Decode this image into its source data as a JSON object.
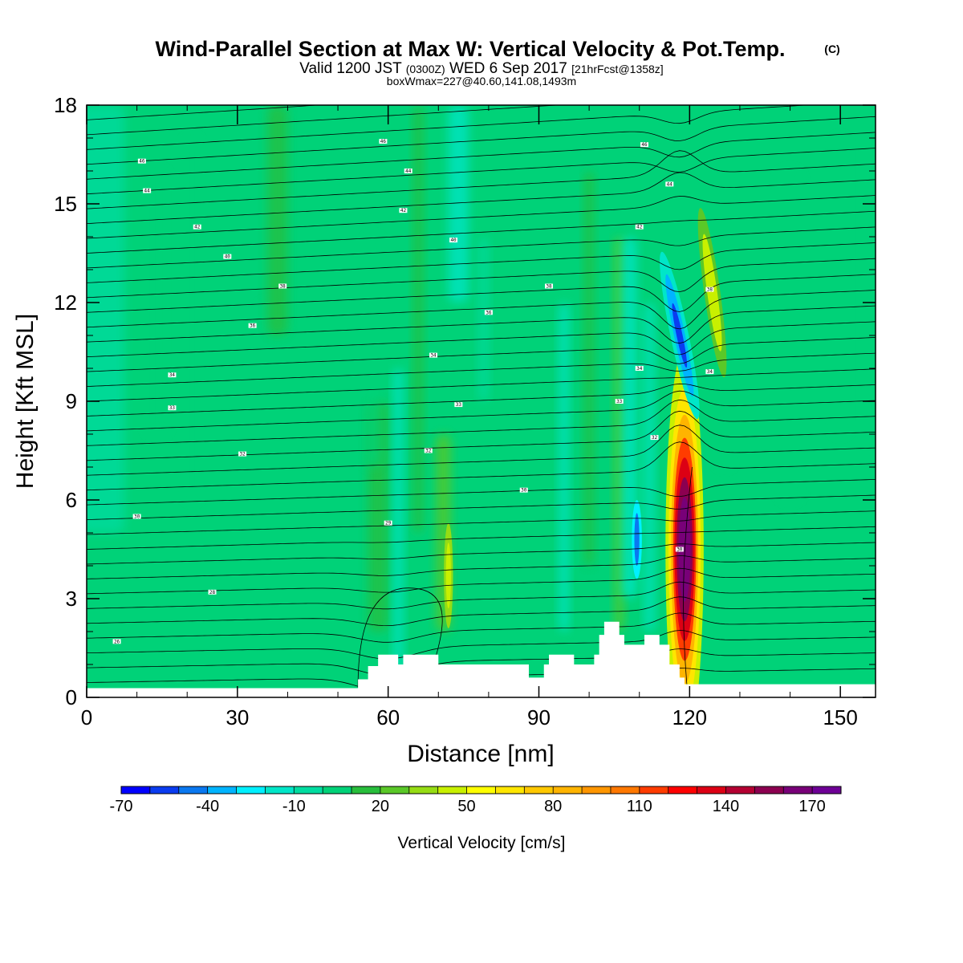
{
  "header": {
    "title_main": "Wind-Parallel Section at Max W: Vertical Velocity & Pot.Temp.",
    "title_mark": "(C)",
    "sub_a": "Valid 1200 JST",
    "sub_b": "(0300Z)",
    "sub_c": "WED 6 Sep 2017",
    "sub_d": "[21hrFcst@1358z]",
    "sub_e": "boxWmax=227@40.60,141.08,1493m"
  },
  "chart_data": {
    "type": "heatmap",
    "xlabel": "Distance [nm]",
    "ylabel": "Height [Kft MSL]",
    "xlim": [
      0,
      157
    ],
    "ylim": [
      0,
      18
    ],
    "xticks": [
      0,
      30,
      60,
      90,
      120,
      150
    ],
    "yticks": [
      0,
      3,
      6,
      9,
      12,
      15,
      18
    ],
    "grid": false,
    "colorbar": {
      "label": "Vertical Velocity [cm/s]",
      "levels": [
        -70,
        -60,
        -50,
        -40,
        -30,
        -20,
        -10,
        0,
        10,
        20,
        30,
        40,
        50,
        60,
        70,
        80,
        90,
        100,
        110,
        120,
        130,
        140,
        150,
        160,
        170,
        180
      ],
      "tick_values": [
        -70,
        -40,
        -10,
        20,
        50,
        80,
        110,
        140,
        170
      ],
      "colors": [
        "#0000ff",
        "#0a3cf0",
        "#0a78f0",
        "#00b4ff",
        "#00f0ff",
        "#00e6c8",
        "#00dca0",
        "#00d278",
        "#28be3c",
        "#5ac828",
        "#96dc14",
        "#c8f000",
        "#ffff00",
        "#ffe600",
        "#ffc800",
        "#ffb400",
        "#ff9600",
        "#ff7800",
        "#ff3c00",
        "#ff0000",
        "#dc0014",
        "#b40032",
        "#8c0050",
        "#780078",
        "#6e0096"
      ]
    },
    "terrain_kft": [
      [
        0,
        0.28
      ],
      [
        52,
        0.28
      ],
      [
        54,
        0.55
      ],
      [
        56,
        0.95
      ],
      [
        58,
        1.3
      ],
      [
        60,
        1.3
      ],
      [
        62,
        1.0
      ],
      [
        63,
        1.3
      ],
      [
        69,
        1.3
      ],
      [
        70,
        1.0
      ],
      [
        86,
        1.0
      ],
      [
        88,
        0.6
      ],
      [
        90,
        0.6
      ],
      [
        91,
        1.0
      ],
      [
        92,
        1.3
      ],
      [
        96,
        1.3
      ],
      [
        97,
        1.0
      ],
      [
        101,
        1.3
      ],
      [
        102,
        1.9
      ],
      [
        103,
        2.3
      ],
      [
        105,
        2.3
      ],
      [
        106,
        1.9
      ],
      [
        107,
        1.6
      ],
      [
        110,
        1.6
      ],
      [
        111,
        1.9
      ],
      [
        113,
        1.9
      ],
      [
        114,
        1.6
      ],
      [
        116,
        1.0
      ],
      [
        118,
        0.6
      ],
      [
        119,
        0.4
      ],
      [
        157,
        0.4
      ]
    ],
    "updraft_max": {
      "x": 119,
      "y": 4.5,
      "value": 160
    },
    "downdraft_min": {
      "x": 118,
      "y": 11,
      "value": -60
    },
    "theta_labels": [
      {
        "x": 11,
        "y": 16.3,
        "text": "46"
      },
      {
        "x": 12,
        "y": 15.4,
        "text": "44"
      },
      {
        "x": 22,
        "y": 14.3,
        "text": "42"
      },
      {
        "x": 28,
        "y": 13.4,
        "text": "40"
      },
      {
        "x": 39,
        "y": 12.5,
        "text": "38"
      },
      {
        "x": 33,
        "y": 11.3,
        "text": "36"
      },
      {
        "x": 17,
        "y": 9.8,
        "text": "34"
      },
      {
        "x": 17,
        "y": 8.8,
        "text": "33"
      },
      {
        "x": 31,
        "y": 7.4,
        "text": "32"
      },
      {
        "x": 10,
        "y": 5.5,
        "text": "30"
      },
      {
        "x": 25,
        "y": 3.2,
        "text": "28"
      },
      {
        "x": 6,
        "y": 1.7,
        "text": "26"
      },
      {
        "x": 59,
        "y": 16.9,
        "text": "46"
      },
      {
        "x": 64,
        "y": 16.0,
        "text": "44"
      },
      {
        "x": 63,
        "y": 14.8,
        "text": "42"
      },
      {
        "x": 73,
        "y": 13.9,
        "text": "40"
      },
      {
        "x": 92,
        "y": 12.5,
        "text": "38"
      },
      {
        "x": 80,
        "y": 11.7,
        "text": "36"
      },
      {
        "x": 69,
        "y": 10.4,
        "text": "34"
      },
      {
        "x": 74,
        "y": 8.9,
        "text": "33"
      },
      {
        "x": 68,
        "y": 7.5,
        "text": "32"
      },
      {
        "x": 87,
        "y": 6.3,
        "text": "30"
      },
      {
        "x": 60,
        "y": 5.3,
        "text": "29"
      },
      {
        "x": 111,
        "y": 16.8,
        "text": "46"
      },
      {
        "x": 116,
        "y": 15.6,
        "text": "44"
      },
      {
        "x": 110,
        "y": 14.3,
        "text": "42"
      },
      {
        "x": 124,
        "y": 12.4,
        "text": "38"
      },
      {
        "x": 110,
        "y": 10.0,
        "text": "34"
      },
      {
        "x": 106,
        "y": 9.0,
        "text": "33"
      },
      {
        "x": 113,
        "y": 7.9,
        "text": "32"
      },
      {
        "x": 124,
        "y": 9.9,
        "text": "34"
      },
      {
        "x": 118,
        "y": 4.5,
        "text": "30"
      }
    ]
  }
}
